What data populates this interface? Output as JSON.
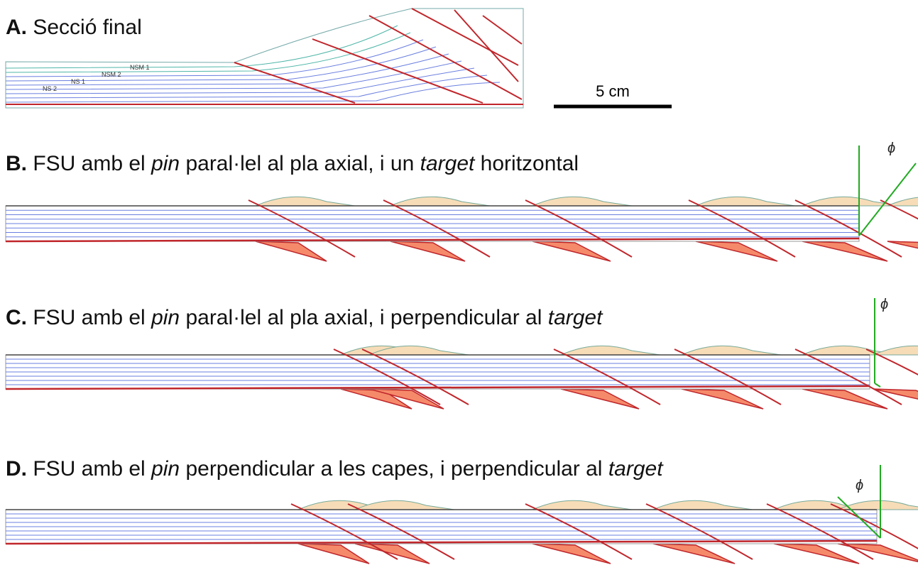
{
  "panels": [
    {
      "label": "A.",
      "title": [
        {
          "text": " Secció final"
        }
      ],
      "layer_labels": [
        "NS 2",
        "NS 1",
        "NSM 2",
        "NSM 1"
      ]
    },
    {
      "label": "B.",
      "title": [
        {
          "text": " FSU amb el "
        },
        {
          "text": "pin",
          "italic": true
        },
        {
          "text": " paral·lel al pla axial, i un "
        },
        {
          "text": "target",
          "italic": true
        },
        {
          "text": " horitzontal"
        }
      ]
    },
    {
      "label": "C.",
      "title": [
        {
          "text": " FSU amb el "
        },
        {
          "text": "pin",
          "italic": true
        },
        {
          "text": " paral·lel al pla axial, i perpendicular al "
        },
        {
          "text": "target",
          "italic": true
        }
      ]
    },
    {
      "label": "D.",
      "title": [
        {
          "text": " FSU amb el "
        },
        {
          "text": "pin",
          "italic": true
        },
        {
          "text": " perpendicular a les capes, i perpendicular al "
        },
        {
          "text": "target",
          "italic": true
        }
      ]
    }
  ],
  "scale_bar": {
    "label": "5 cm"
  },
  "angle_labels": [
    "ϕ",
    "ϕ",
    "ϕ"
  ]
}
